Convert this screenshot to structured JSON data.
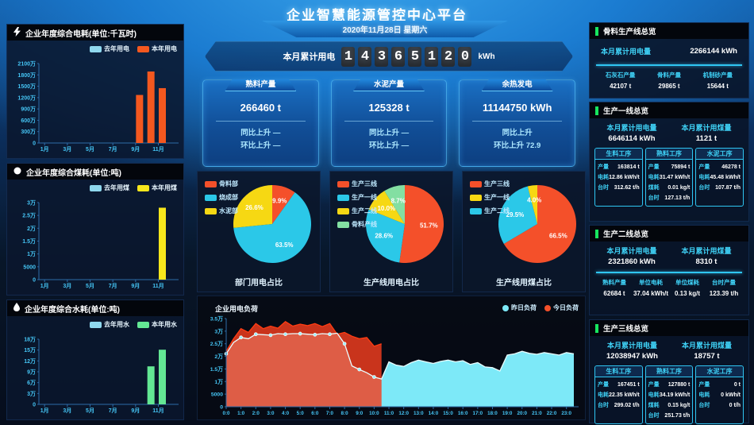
{
  "header": {
    "title": "企业智慧能源管控中心平台",
    "date": "2020年11月28日 星期六"
  },
  "counter": {
    "label": "本月累计用电",
    "digits": [
      "1",
      "4",
      "3",
      "6",
      "5",
      "1",
      "2",
      "0"
    ],
    "unit": "kWh"
  },
  "stat_cards": [
    {
      "title": "熟料产量",
      "value": "266460 t",
      "lines": [
        "同比上升 —",
        "环比上升 —"
      ]
    },
    {
      "title": "水泥产量",
      "value": "125328 t",
      "lines": [
        "同比上升 —",
        "环比上升 —"
      ]
    },
    {
      "title": "余热发电",
      "value": "11144750 kWh",
      "lines": [
        "同比上升",
        "环比上升 72.9"
      ]
    }
  ],
  "chart_data": [
    {
      "id": "elec_year",
      "type": "bar",
      "title": "企业年度综合电耗(单位:千瓦时)",
      "icon": "lightning-icon",
      "categories": [
        "1月",
        "",
        "3月",
        "",
        "5月",
        "",
        "7月",
        "",
        "9月",
        "",
        "11月",
        ""
      ],
      "legend": [
        {
          "label": "去年用电",
          "color": "#8fd8ee"
        },
        {
          "label": "本年用电",
          "color": "#f4581f"
        }
      ],
      "series": [
        {
          "name": "去年用电",
          "color": "#8fd8ee",
          "values": [
            0,
            0,
            0,
            0,
            0,
            0,
            0,
            0,
            0,
            0,
            0,
            0
          ]
        },
        {
          "name": "本年用电",
          "color": "#f4581f",
          "values": [
            0,
            0,
            0,
            0,
            0,
            0,
            0,
            0,
            12700000,
            18900000,
            14500000,
            0
          ]
        }
      ],
      "ymax": 21000000,
      "yticks": [
        "0",
        "300万",
        "600万",
        "900万",
        "1200万",
        "1500万",
        "1800万",
        "2100万"
      ]
    },
    {
      "id": "coal_year",
      "type": "bar",
      "title": "企业年度综合煤耗(单位:吨)",
      "icon": "circle-icon",
      "categories": [
        "1月",
        "",
        "3月",
        "",
        "5月",
        "",
        "7月",
        "",
        "9月",
        "",
        "11月",
        ""
      ],
      "legend": [
        {
          "label": "去年用煤",
          "color": "#8fd8ee"
        },
        {
          "label": "本年用煤",
          "color": "#f8e71c"
        }
      ],
      "series": [
        {
          "name": "去年用煤",
          "color": "#8fd8ee",
          "values": [
            0,
            0,
            0,
            0,
            0,
            0,
            0,
            0,
            0,
            0,
            0,
            0
          ]
        },
        {
          "name": "本年用煤",
          "color": "#f8e71c",
          "values": [
            0,
            0,
            0,
            0,
            0,
            0,
            0,
            0,
            0,
            0,
            28000,
            0
          ]
        }
      ],
      "ymax": 30000,
      "yticks": [
        "0",
        "5000",
        "1万",
        "1.5万",
        "2万",
        "2.5万",
        "3万"
      ]
    },
    {
      "id": "water_year",
      "type": "bar",
      "title": "企业年度综合水耗(单位:吨)",
      "icon": "droplet-icon",
      "categories": [
        "1月",
        "",
        "3月",
        "",
        "5月",
        "",
        "7月",
        "",
        "9月",
        "",
        "11月",
        ""
      ],
      "legend": [
        {
          "label": "去年用水",
          "color": "#8fd8ee"
        },
        {
          "label": "本年用水",
          "color": "#63e794"
        }
      ],
      "series": [
        {
          "name": "去年用水",
          "color": "#8fd8ee",
          "values": [
            0,
            0,
            0,
            0,
            0,
            0,
            0,
            0,
            0,
            0,
            0,
            0
          ]
        },
        {
          "name": "本年用水",
          "color": "#63e794",
          "values": [
            0,
            0,
            0,
            0,
            0,
            0,
            0,
            0,
            0,
            105000,
            151000,
            0
          ]
        }
      ],
      "ymax": 180000,
      "yticks": [
        "0",
        "3万",
        "6万",
        "9万",
        "12万",
        "15万",
        "18万"
      ]
    },
    {
      "id": "dept_power",
      "type": "pie",
      "title": "部门用电占比",
      "slices": [
        {
          "label": "骨料部",
          "color": "#f4502a",
          "pct": 9.9,
          "text": "9.9%"
        },
        {
          "label": "烧成部",
          "color": "#2bc8e8",
          "pct": 63.5,
          "text": "63.5%"
        },
        {
          "label": "水泥部",
          "color": "#f6d813",
          "pct": 26.6,
          "text": "26.6%"
        }
      ],
      "legend_order": [
        0,
        1,
        2
      ]
    },
    {
      "id": "line_power",
      "type": "pie",
      "title": "生产线用电占比",
      "slices": [
        {
          "label": "生产三线",
          "color": "#f4502a",
          "pct": 51.7,
          "text": "51.7%"
        },
        {
          "label": "生产一线",
          "color": "#2bc8e8",
          "pct": 28.6,
          "text": "28.6%"
        },
        {
          "label": "生产二线",
          "color": "#f6d813",
          "pct": 10.0,
          "text": "10.0%"
        },
        {
          "label": "骨料产线",
          "color": "#83dfa2",
          "pct": 8.7,
          "text": "8.7%"
        }
      ],
      "legend_order": [
        0,
        1,
        2,
        3
      ]
    },
    {
      "id": "line_coal",
      "type": "pie",
      "title": "生产线用煤占比",
      "slices": [
        {
          "label": "生产三线",
          "color": "#f4502a",
          "pct": 66.5,
          "text": "66.5%"
        },
        {
          "label": "生产二线",
          "color": "#2bc8e8",
          "pct": 29.5,
          "text": "29.5%"
        },
        {
          "label": "生产一线",
          "color": "#f6d813",
          "pct": 4.0,
          "text": "4.0%"
        }
      ],
      "legend_order": [
        0,
        2,
        1
      ]
    },
    {
      "id": "load",
      "type": "area",
      "title": "企业用电负荷",
      "legend": [
        {
          "label": "昨日负荷",
          "color": "#7de9f8"
        },
        {
          "label": "今日负荷",
          "color": "#f4502a"
        }
      ],
      "xlabels": [
        "0:0",
        "1:0",
        "2:0",
        "3:0",
        "4:0",
        "5:0",
        "6:0",
        "7:0",
        "8:0",
        "9:0",
        "10:0",
        "11:0",
        "12:0",
        "13:0",
        "14:0",
        "15:0",
        "16:0",
        "17:0",
        "18:0",
        "19:0",
        "20:0",
        "21:0",
        "22:0",
        "23:0"
      ],
      "ymax": 35000,
      "yticks": [
        "0",
        "5000",
        "1万",
        "1.5万",
        "2万",
        "2.5万",
        "3万",
        "3.5万"
      ],
      "yesterday": [
        21000,
        25500,
        27500,
        27000,
        28800,
        28600,
        28400,
        29000,
        28800,
        29000,
        29000,
        28800,
        28600,
        29000,
        28800,
        29200,
        25000,
        16200,
        14800,
        13500,
        11800,
        11000,
        17800,
        16500,
        16000,
        17500,
        18500,
        17800,
        17200,
        18000,
        18500,
        17800,
        18300,
        16800,
        17500,
        15800,
        15500,
        14200,
        20500,
        21000,
        22000,
        21200,
        20800,
        21500,
        21000,
        20500,
        21500,
        21000
      ],
      "today": [
        22000,
        27000,
        31000,
        29500,
        33000,
        31000,
        32000,
        31200,
        33800,
        32000,
        32800,
        32200,
        33000,
        31800,
        33000,
        28800,
        29500,
        28000,
        27000,
        27500,
        24000,
        25000
      ]
    }
  ],
  "right_panels": [
    {
      "title": "骨料生产线总览",
      "stats": [
        {
          "label": "本月累计用电量",
          "value": "2266144 kWh"
        }
      ],
      "columns": [
        {
          "label": "石灰石产量",
          "value": "42107 t"
        },
        {
          "label": "骨料产量",
          "value": "29865 t"
        },
        {
          "label": "机制砂产量",
          "value": "15644 t"
        }
      ]
    },
    {
      "title": "生产一线总览",
      "stats": [
        {
          "label": "本月累计用电量",
          "value": "6646114 kWh"
        },
        {
          "label": "本月累计用煤量",
          "value": "1121 t"
        }
      ],
      "process_cards": [
        {
          "title": "生料工序",
          "rows": [
            {
              "label": "产量",
              "value": "163814 t"
            },
            {
              "label": "电耗",
              "value": "12.86 kWh/t"
            },
            {
              "label": "台时",
              "value": "312.62 t/h"
            }
          ]
        },
        {
          "title": "熟料工序",
          "rows": [
            {
              "label": "产量",
              "value": "75894 t"
            },
            {
              "label": "电耗",
              "value": "31.47 kWh/t"
            },
            {
              "label": "煤耗",
              "value": "0.01 kg/t"
            },
            {
              "label": "台时",
              "value": "127.13 t/h"
            }
          ]
        },
        {
          "title": "水泥工序",
          "rows": [
            {
              "label": "产量",
              "value": "46278 t"
            },
            {
              "label": "电耗",
              "value": "45.48 kWh/t"
            },
            {
              "label": "台时",
              "value": "107.87 t/h"
            }
          ]
        }
      ]
    },
    {
      "title": "生产二线总览",
      "stats": [
        {
          "label": "本月累计用电量",
          "value": "2321860 kWh"
        },
        {
          "label": "本月累计用煤量",
          "value": "8310 t"
        }
      ],
      "columns": [
        {
          "label": "熟料产量",
          "value": "62684 t"
        },
        {
          "label": "单位电耗",
          "value": "37.04 kWh/t"
        },
        {
          "label": "单位煤耗",
          "value": "0.13 kg/t"
        },
        {
          "label": "台时产量",
          "value": "123.39 t/h"
        }
      ]
    },
    {
      "title": "生产三线总览",
      "stats": [
        {
          "label": "本月累计用电量",
          "value": "12038947 kWh"
        },
        {
          "label": "本月累计用煤量",
          "value": "18757 t"
        }
      ],
      "process_cards": [
        {
          "title": "生料工序",
          "rows": [
            {
              "label": "产量",
              "value": "167451 t"
            },
            {
              "label": "电耗",
              "value": "22.35 kWh/t"
            },
            {
              "label": "台时",
              "value": "299.02 t/h"
            }
          ]
        },
        {
          "title": "熟料工序",
          "rows": [
            {
              "label": "产量",
              "value": "127880 t"
            },
            {
              "label": "电耗",
              "value": "34.19 kWh/t"
            },
            {
              "label": "煤耗",
              "value": "0.15 kg/t"
            },
            {
              "label": "台时",
              "value": "251.73 t/h"
            }
          ]
        },
        {
          "title": "水泥工序",
          "rows": [
            {
              "label": "产量",
              "value": "0 t"
            },
            {
              "label": "电耗",
              "value": "0 kWh/t"
            },
            {
              "label": "台时",
              "value": "0 t/h"
            }
          ]
        }
      ]
    }
  ]
}
